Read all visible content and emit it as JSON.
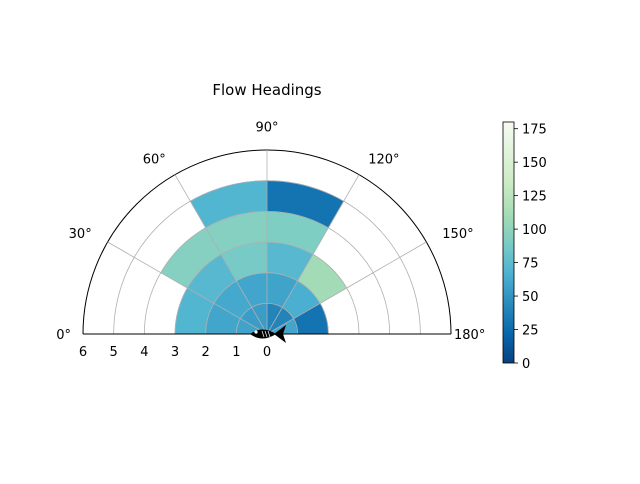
{
  "chart_data": {
    "type": "polar-bar",
    "title": "Flow Headings",
    "theta_range_deg": [
      0,
      180
    ],
    "theta_ticks": [
      "0°",
      "30°",
      "60°",
      "90°",
      "120°",
      "150°",
      "180°"
    ],
    "r_range": [
      0,
      6
    ],
    "r_ticks": [
      "6",
      "5",
      "4",
      "3",
      "2",
      "1",
      "0"
    ],
    "r_gridlines": [
      1,
      2,
      3,
      4,
      5,
      6
    ],
    "grid": true,
    "sector_width_deg": 30,
    "ring_width": 1,
    "sectors": [
      {
        "theta_start": 0,
        "theta_end": 30,
        "cells": [
          58,
          60,
          70
        ]
      },
      {
        "theta_start": 30,
        "theta_end": 60,
        "cells": [
          55,
          62,
          72,
          95
        ]
      },
      {
        "theta_start": 60,
        "theta_end": 90,
        "cells": [
          55,
          60,
          88,
          95,
          70
        ]
      },
      {
        "theta_start": 90,
        "theta_end": 120,
        "cells": [
          40,
          58,
          72,
          92,
          30
        ]
      },
      {
        "theta_start": 120,
        "theta_end": 150,
        "cells": [
          40,
          65,
          110
        ]
      },
      {
        "theta_start": 150,
        "theta_end": 180,
        "cells": [
          60,
          30
        ]
      }
    ],
    "colorbar": {
      "colormap": "GnBu_r",
      "range": [
        0,
        180
      ],
      "ticks": [
        "0",
        "25",
        "50",
        "75",
        "100",
        "125",
        "150",
        "175"
      ],
      "tick_values": [
        0,
        25,
        50,
        75,
        100,
        125,
        150,
        175
      ]
    },
    "center_icon": "fish-icon"
  }
}
